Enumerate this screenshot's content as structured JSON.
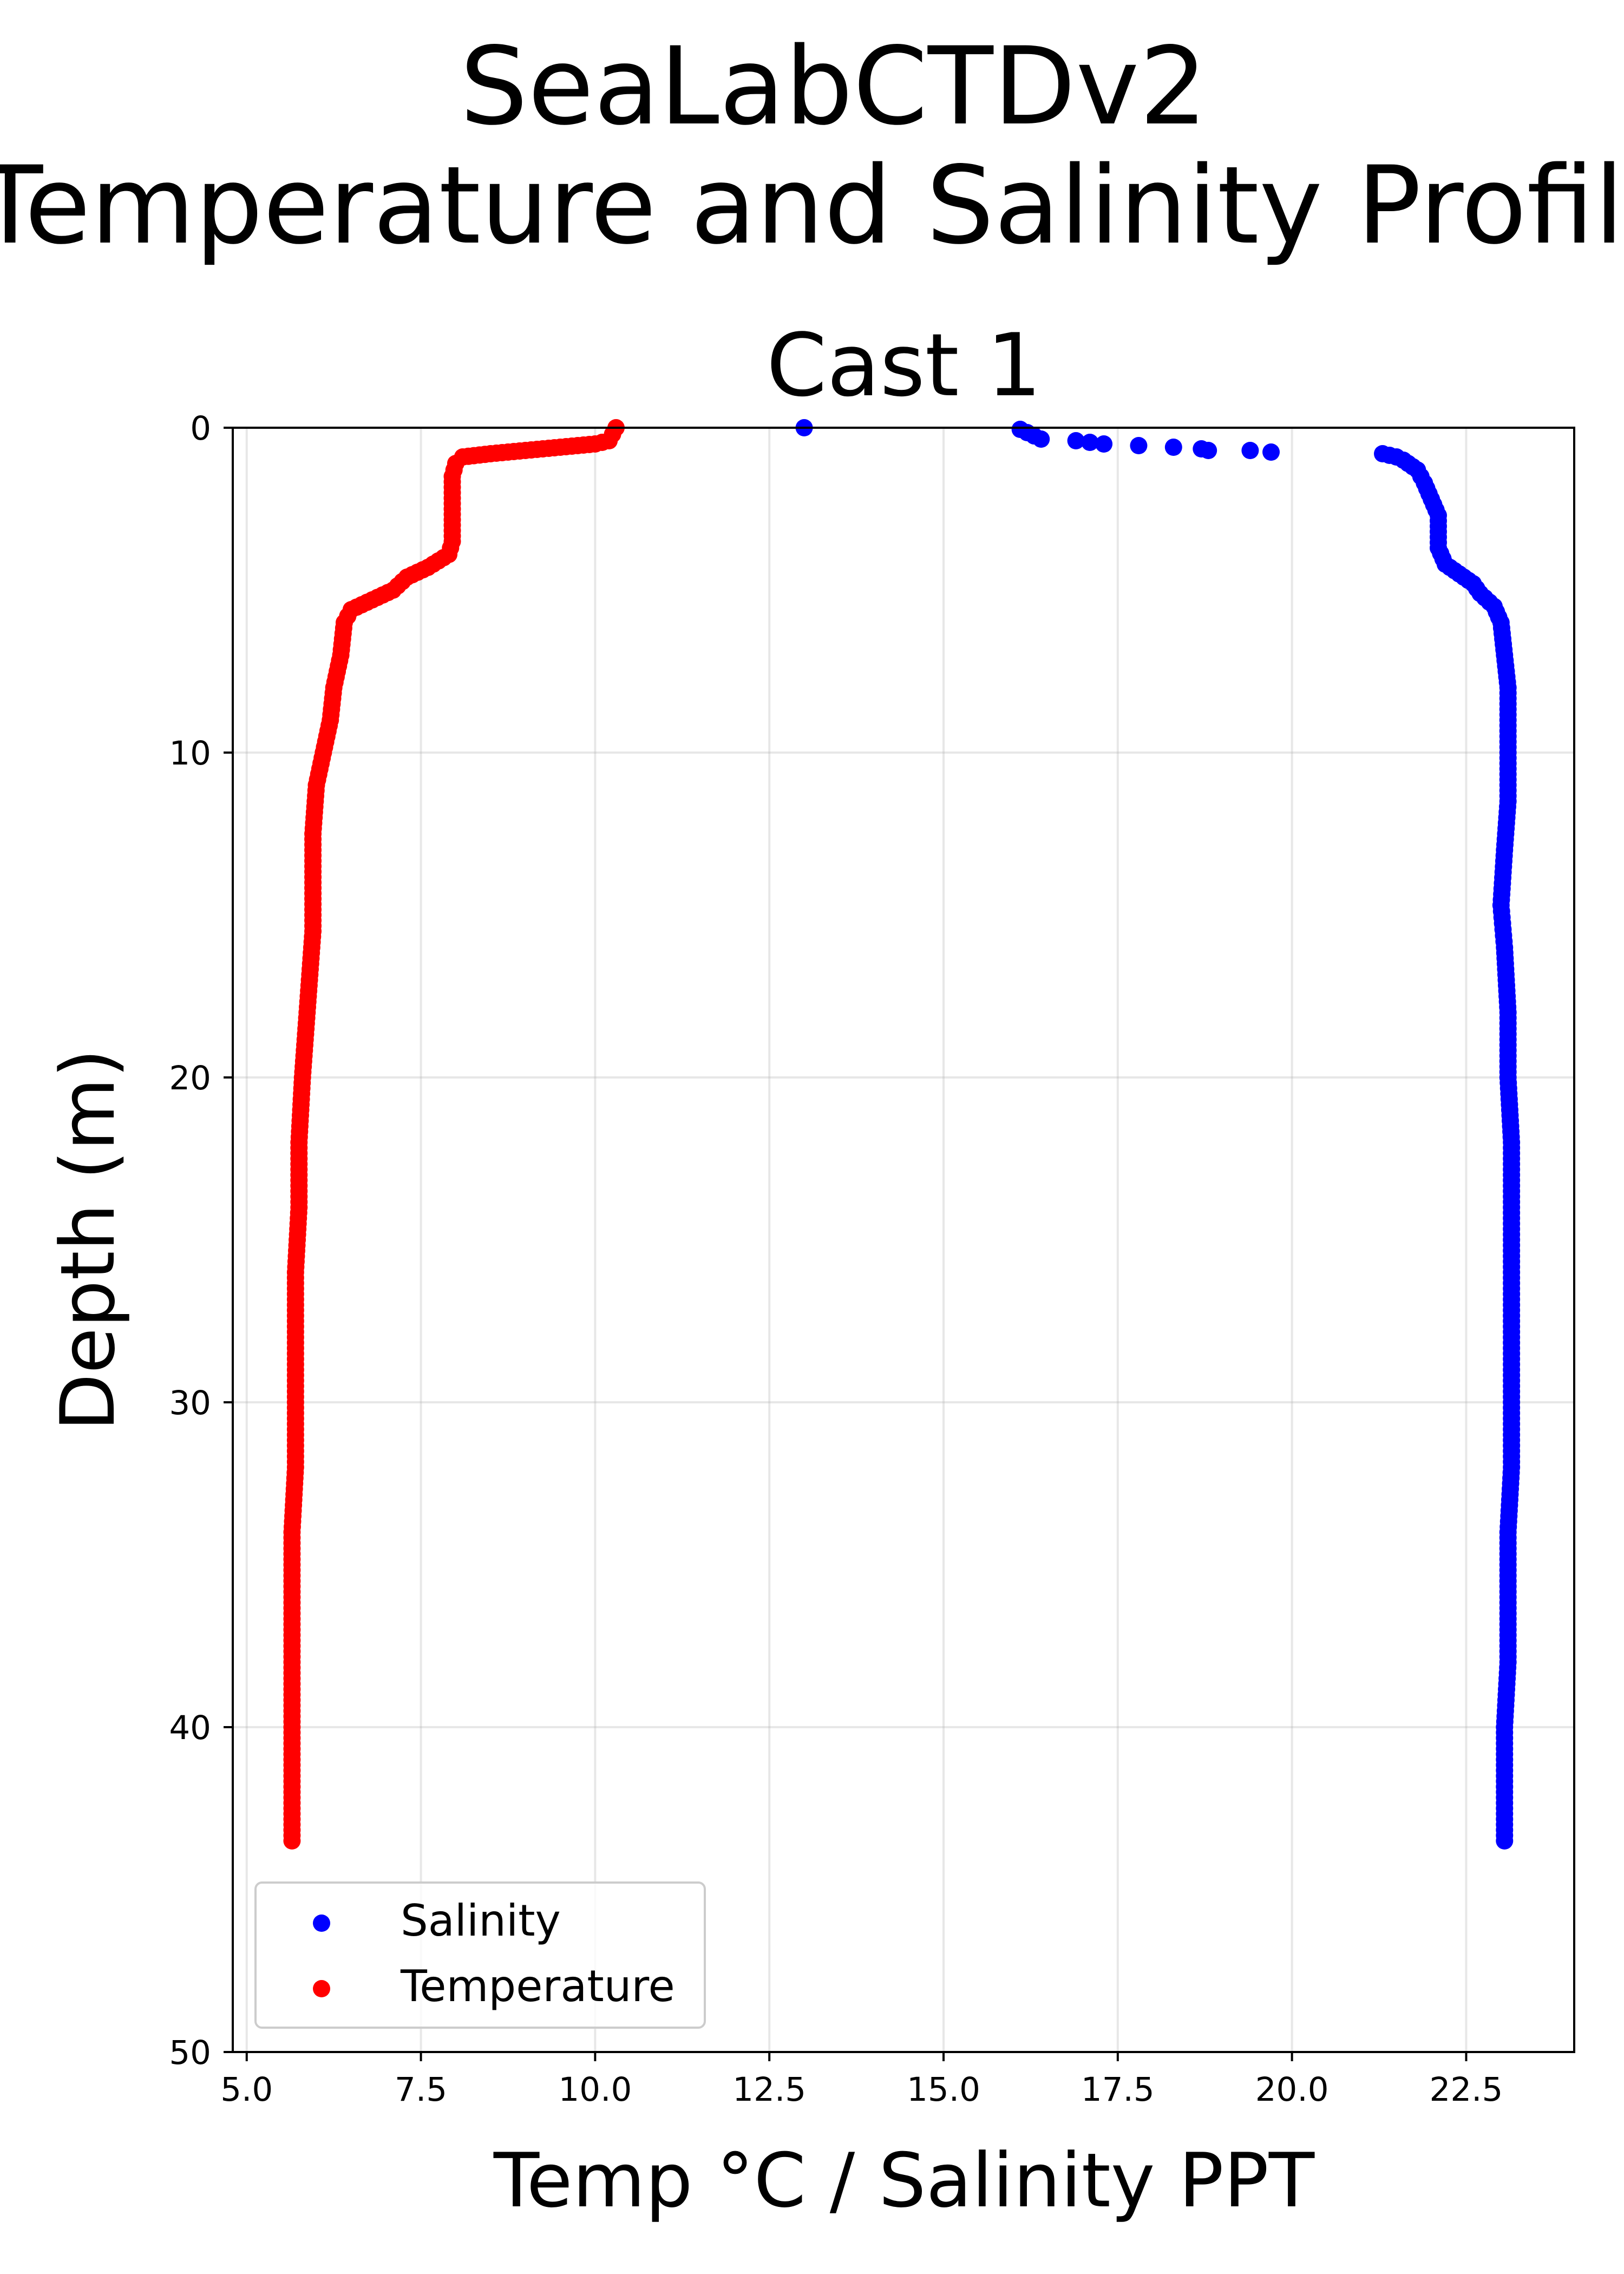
{
  "suptitle_line1": "SeaLabCTDv2",
  "suptitle_line2": "Temperature and Salinity Profile",
  "chart_data": {
    "type": "scatter",
    "title": "Cast 1",
    "xlabel": "Temp °C / Salinity PPT",
    "ylabel": "Depth (m)",
    "xlim": [
      4.8,
      24.05
    ],
    "ylim": [
      50,
      0
    ],
    "y_inverted": true,
    "grid": true,
    "legend_position": "lower-left",
    "xticks": [
      "5.0",
      "7.5",
      "10.0",
      "12.5",
      "15.0",
      "17.5",
      "20.0",
      "22.5"
    ],
    "yticks": [
      "0",
      "10",
      "20",
      "30",
      "40",
      "50"
    ],
    "series": [
      {
        "name": "Salinity",
        "color": "#0000ff",
        "points": [
          [
            13.0,
            0.0
          ],
          [
            16.1,
            0.05
          ],
          [
            16.2,
            0.15
          ],
          [
            16.3,
            0.25
          ],
          [
            16.4,
            0.35
          ],
          [
            16.9,
            0.4
          ],
          [
            17.1,
            0.45
          ],
          [
            17.3,
            0.5
          ],
          [
            17.8,
            0.55
          ],
          [
            18.3,
            0.6
          ],
          [
            18.7,
            0.65
          ],
          [
            18.8,
            0.7
          ],
          [
            19.4,
            0.7
          ],
          [
            19.7,
            0.75
          ],
          [
            21.3,
            0.8
          ],
          [
            21.5,
            0.9
          ],
          [
            21.6,
            1.0
          ],
          [
            21.8,
            1.3
          ],
          [
            21.9,
            1.7
          ],
          [
            22.0,
            2.2
          ],
          [
            22.1,
            2.7
          ],
          [
            22.1,
            3.2
          ],
          [
            22.1,
            3.7
          ],
          [
            22.2,
            4.2
          ],
          [
            22.4,
            4.5
          ],
          [
            22.6,
            4.8
          ],
          [
            22.7,
            5.1
          ],
          [
            22.9,
            5.5
          ],
          [
            23.0,
            6.0
          ],
          [
            23.05,
            7.0
          ],
          [
            23.1,
            8.0
          ],
          [
            23.1,
            9.0
          ],
          [
            23.1,
            10.0
          ],
          [
            23.1,
            11.5
          ],
          [
            23.05,
            13.0
          ],
          [
            23.0,
            14.7
          ],
          [
            23.05,
            16.0
          ],
          [
            23.1,
            18.0
          ],
          [
            23.1,
            20.0
          ],
          [
            23.15,
            22.0
          ],
          [
            23.15,
            24.0
          ],
          [
            23.15,
            26.0
          ],
          [
            23.15,
            28.0
          ],
          [
            23.15,
            30.0
          ],
          [
            23.15,
            32.0
          ],
          [
            23.1,
            34.0
          ],
          [
            23.1,
            36.0
          ],
          [
            23.1,
            38.0
          ],
          [
            23.05,
            40.0
          ],
          [
            23.05,
            42.0
          ],
          [
            23.05,
            43.5
          ]
        ]
      },
      {
        "name": "Temperature",
        "color": "#ff0000",
        "points": [
          [
            10.3,
            0.0
          ],
          [
            10.25,
            0.2
          ],
          [
            10.2,
            0.4
          ],
          [
            10.0,
            0.5
          ],
          [
            9.5,
            0.6
          ],
          [
            9.0,
            0.7
          ],
          [
            8.5,
            0.8
          ],
          [
            8.1,
            0.9
          ],
          [
            8.0,
            1.1
          ],
          [
            7.95,
            1.5
          ],
          [
            7.95,
            2.0
          ],
          [
            7.95,
            2.5
          ],
          [
            7.95,
            3.0
          ],
          [
            7.95,
            3.5
          ],
          [
            7.9,
            3.9
          ],
          [
            7.6,
            4.3
          ],
          [
            7.3,
            4.6
          ],
          [
            7.1,
            5.0
          ],
          [
            6.8,
            5.3
          ],
          [
            6.5,
            5.6
          ],
          [
            6.4,
            6.0
          ],
          [
            6.35,
            7.0
          ],
          [
            6.25,
            8.0
          ],
          [
            6.2,
            9.0
          ],
          [
            6.1,
            10.0
          ],
          [
            6.0,
            11.0
          ],
          [
            5.95,
            12.5
          ],
          [
            5.95,
            14.0
          ],
          [
            5.95,
            15.5
          ],
          [
            5.9,
            17.0
          ],
          [
            5.85,
            18.5
          ],
          [
            5.8,
            20.0
          ],
          [
            5.75,
            22.0
          ],
          [
            5.75,
            24.0
          ],
          [
            5.7,
            26.0
          ],
          [
            5.7,
            28.0
          ],
          [
            5.7,
            30.0
          ],
          [
            5.7,
            32.0
          ],
          [
            5.65,
            34.0
          ],
          [
            5.65,
            36.0
          ],
          [
            5.65,
            38.0
          ],
          [
            5.65,
            40.0
          ],
          [
            5.65,
            42.0
          ],
          [
            5.65,
            43.5
          ]
        ]
      }
    ]
  }
}
